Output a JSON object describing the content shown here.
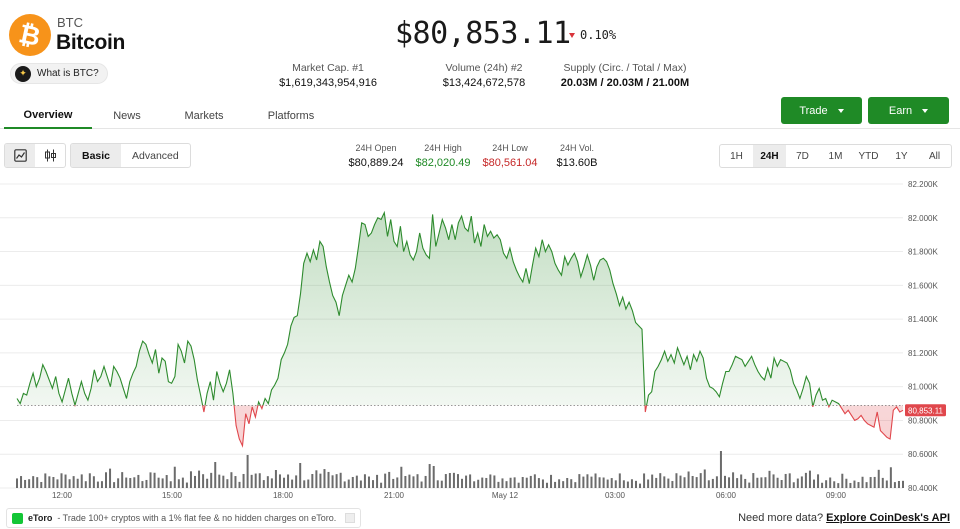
{
  "coin": {
    "symbol": "BTC",
    "name": "Bitcoin",
    "logo_glyph": "₿",
    "what_is": "What is BTC?",
    "brand_color": "#f7931a"
  },
  "price": {
    "value": "$80,853.11",
    "change": "0.10%",
    "direction": "down"
  },
  "stats": [
    {
      "label": "Market Cap. #1",
      "value": "$1,619,343,954,916"
    },
    {
      "label": "Volume (24h) #2",
      "value": "$13,424,672,578"
    },
    {
      "label": "Supply (Circ. / Total / Max)",
      "value": "20.03M / 20.03M / 21.00M"
    }
  ],
  "actions": {
    "trade": "Trade",
    "earn": "Earn"
  },
  "tabs": [
    "Overview",
    "News",
    "Markets",
    "Platforms"
  ],
  "active_tab": "Overview",
  "chart_controls": {
    "modes": [
      "Basic",
      "Advanced"
    ],
    "active_mode": "Basic",
    "ranges": [
      "1H",
      "24H",
      "7D",
      "1M",
      "YTD",
      "1Y",
      "All"
    ],
    "active_range": "24H"
  },
  "ohlc": [
    {
      "label": "24H Open",
      "value": "$80,889.24",
      "color": "#111111"
    },
    {
      "label": "24H High",
      "value": "$82,020.49",
      "color": "#1f8a26"
    },
    {
      "label": "24H Low",
      "value": "$80,561.04",
      "color": "#c62828"
    },
    {
      "label": "24H Vol.",
      "value": "$13.60B",
      "color": "#111111"
    }
  ],
  "chart_data": {
    "type": "area",
    "x_tick_labels": [
      "12:00",
      "15:00",
      "18:00",
      "21:00",
      "May 12",
      "03:00",
      "06:00",
      "09:00"
    ],
    "y_tick_labels": [
      "82.200K",
      "82.000K",
      "81.800K",
      "81.600K",
      "81.400K",
      "81.200K",
      "81.000K",
      "80.800K",
      "80.600K",
      "80.400K"
    ],
    "ylim": [
      80400,
      82200
    ],
    "baseline": 80889.24,
    "last_price_label": "80,853.11",
    "colors": {
      "up": "#2e8b2e",
      "down": "#e0474c",
      "volume": "#555555"
    },
    "series": [
      {
        "name": "price",
        "values": [
          80930,
          80900,
          80960,
          80950,
          81020,
          81080,
          81000,
          81050,
          81130,
          81090,
          81040,
          80990,
          81060,
          80960,
          80910,
          80980,
          81050,
          80960,
          80890,
          80960,
          81030,
          80960,
          80920,
          80990,
          81100,
          81030,
          81060,
          81120,
          81060,
          81000,
          81120,
          81090,
          81050,
          80990,
          80930,
          81030,
          81080,
          81120,
          81210,
          81270,
          81250,
          81190,
          81140,
          81220,
          81080,
          81170,
          81150,
          81030,
          81020,
          81060,
          81250,
          81210,
          81140,
          81270,
          81240,
          81160,
          81040,
          80950,
          80850,
          80960,
          81030,
          80920,
          81090,
          81020,
          80970,
          81020,
          81100,
          80960,
          80770,
          80690,
          80650,
          80840,
          80780,
          80880,
          80820,
          80910,
          80870,
          80930,
          80900,
          80980,
          81010,
          81050,
          81160,
          81200,
          81250,
          81360,
          81410,
          81420,
          81550,
          81730,
          81790,
          81740,
          81810,
          81750,
          81860,
          81830,
          81710,
          81620,
          81540,
          81500,
          81420,
          81540,
          81600,
          81660,
          81620,
          81700,
          81830,
          81970,
          81960,
          81890,
          81910,
          81960,
          82000,
          81990,
          82030,
          81890,
          81990,
          81860,
          81830,
          81950,
          81800,
          81860,
          81780,
          81750,
          81800,
          81910,
          81820,
          81780,
          81760,
          82020,
          81830,
          81910,
          81990,
          81940,
          81870,
          81960,
          81870,
          81970,
          82010,
          81940,
          81920,
          82010,
          81850,
          81910,
          81830,
          81960,
          81890,
          81920,
          81880,
          81900,
          81870,
          81790,
          81760,
          81820,
          81740,
          81690,
          81650,
          81620,
          81700,
          81610,
          81720,
          81820,
          81770,
          81870,
          81800,
          81840,
          81800,
          81730,
          81690,
          81660,
          81770,
          81720,
          81760,
          81790,
          81740,
          81650,
          81710,
          81780,
          81720,
          81630,
          81710,
          81750,
          81760,
          81740,
          81690,
          81610,
          81550,
          81480,
          81530,
          81460,
          81500,
          81450,
          81380,
          81360,
          81340,
          80850,
          80950,
          80970,
          81090,
          81120,
          81160,
          81210,
          81150,
          81190,
          81140,
          81230,
          81180,
          81130,
          81180,
          81100,
          81190,
          81150,
          81210,
          81170,
          81050,
          81000,
          80990,
          80970,
          80940,
          81020,
          81090,
          81090,
          81130,
          81180,
          81170,
          81160,
          81120,
          81150,
          81180,
          81130,
          81090,
          81060,
          81040,
          81110,
          81050,
          81170,
          81120,
          81160,
          81150,
          81140,
          81100,
          81020,
          80980,
          80930,
          80990,
          81060,
          81020,
          80880,
          80950,
          80990,
          80920,
          80930,
          80880,
          80920,
          80910,
          80900,
          80870,
          80840,
          80860,
          80830,
          80800,
          80810,
          80830,
          80800,
          80780,
          80770,
          80760,
          80850,
          80740,
          80720,
          80700,
          80690,
          80860,
          80880,
          80850,
          80860
        ]
      }
    ]
  },
  "footer": {
    "promo_brand": "eToro",
    "promo_text": "- Trade 100+ cryptos with a 1% flat fee & no hidden charges on eToro.",
    "api_prefix": "Need more data?",
    "api_link": "Explore CoinDesk's API"
  }
}
